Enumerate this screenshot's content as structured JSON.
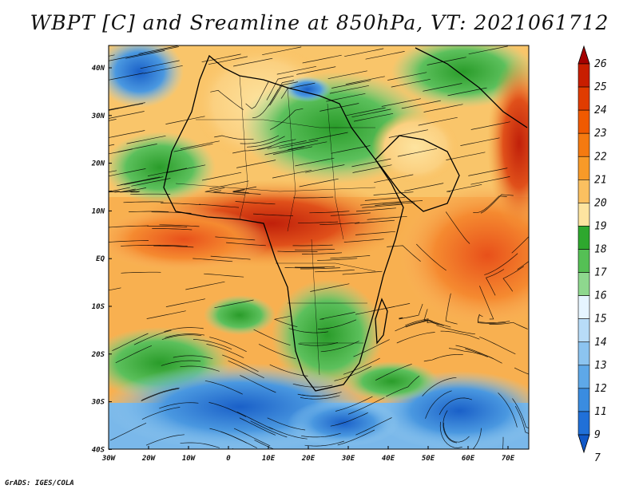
{
  "title": "WBPT [C] and Sreamline at 850hPa, VT: 2021061712",
  "footer": "GrADS: IGES/COLA",
  "map": {
    "lat_labels": [
      "40N",
      "30N",
      "20N",
      "10N",
      "EQ",
      "10S",
      "20S",
      "30S",
      "40S"
    ],
    "lon_labels": [
      "30W",
      "20W",
      "10W",
      "0",
      "10E",
      "20E",
      "30E",
      "40E",
      "50E",
      "60E",
      "70E"
    ],
    "lon_range": [
      -30,
      75
    ],
    "lat_range": [
      -40,
      45
    ]
  },
  "colorbar": {
    "labels": [
      "26",
      "25",
      "24",
      "23",
      "22",
      "21",
      "20",
      "19",
      "18",
      "17",
      "16",
      "15",
      "14",
      "13",
      "12",
      "11",
      "9",
      "7"
    ],
    "colors": [
      "#a50000",
      "#c81e00",
      "#e03c00",
      "#f05a00",
      "#f57a10",
      "#f89a28",
      "#fbc060",
      "#fde4a0",
      "#2ea82e",
      "#55c055",
      "#8ed88e",
      "#e6f5ff",
      "#b8dcf8",
      "#8cc4f0",
      "#5ea8e8",
      "#3a8ce0",
      "#2070d8",
      "#1058c8"
    ]
  }
}
